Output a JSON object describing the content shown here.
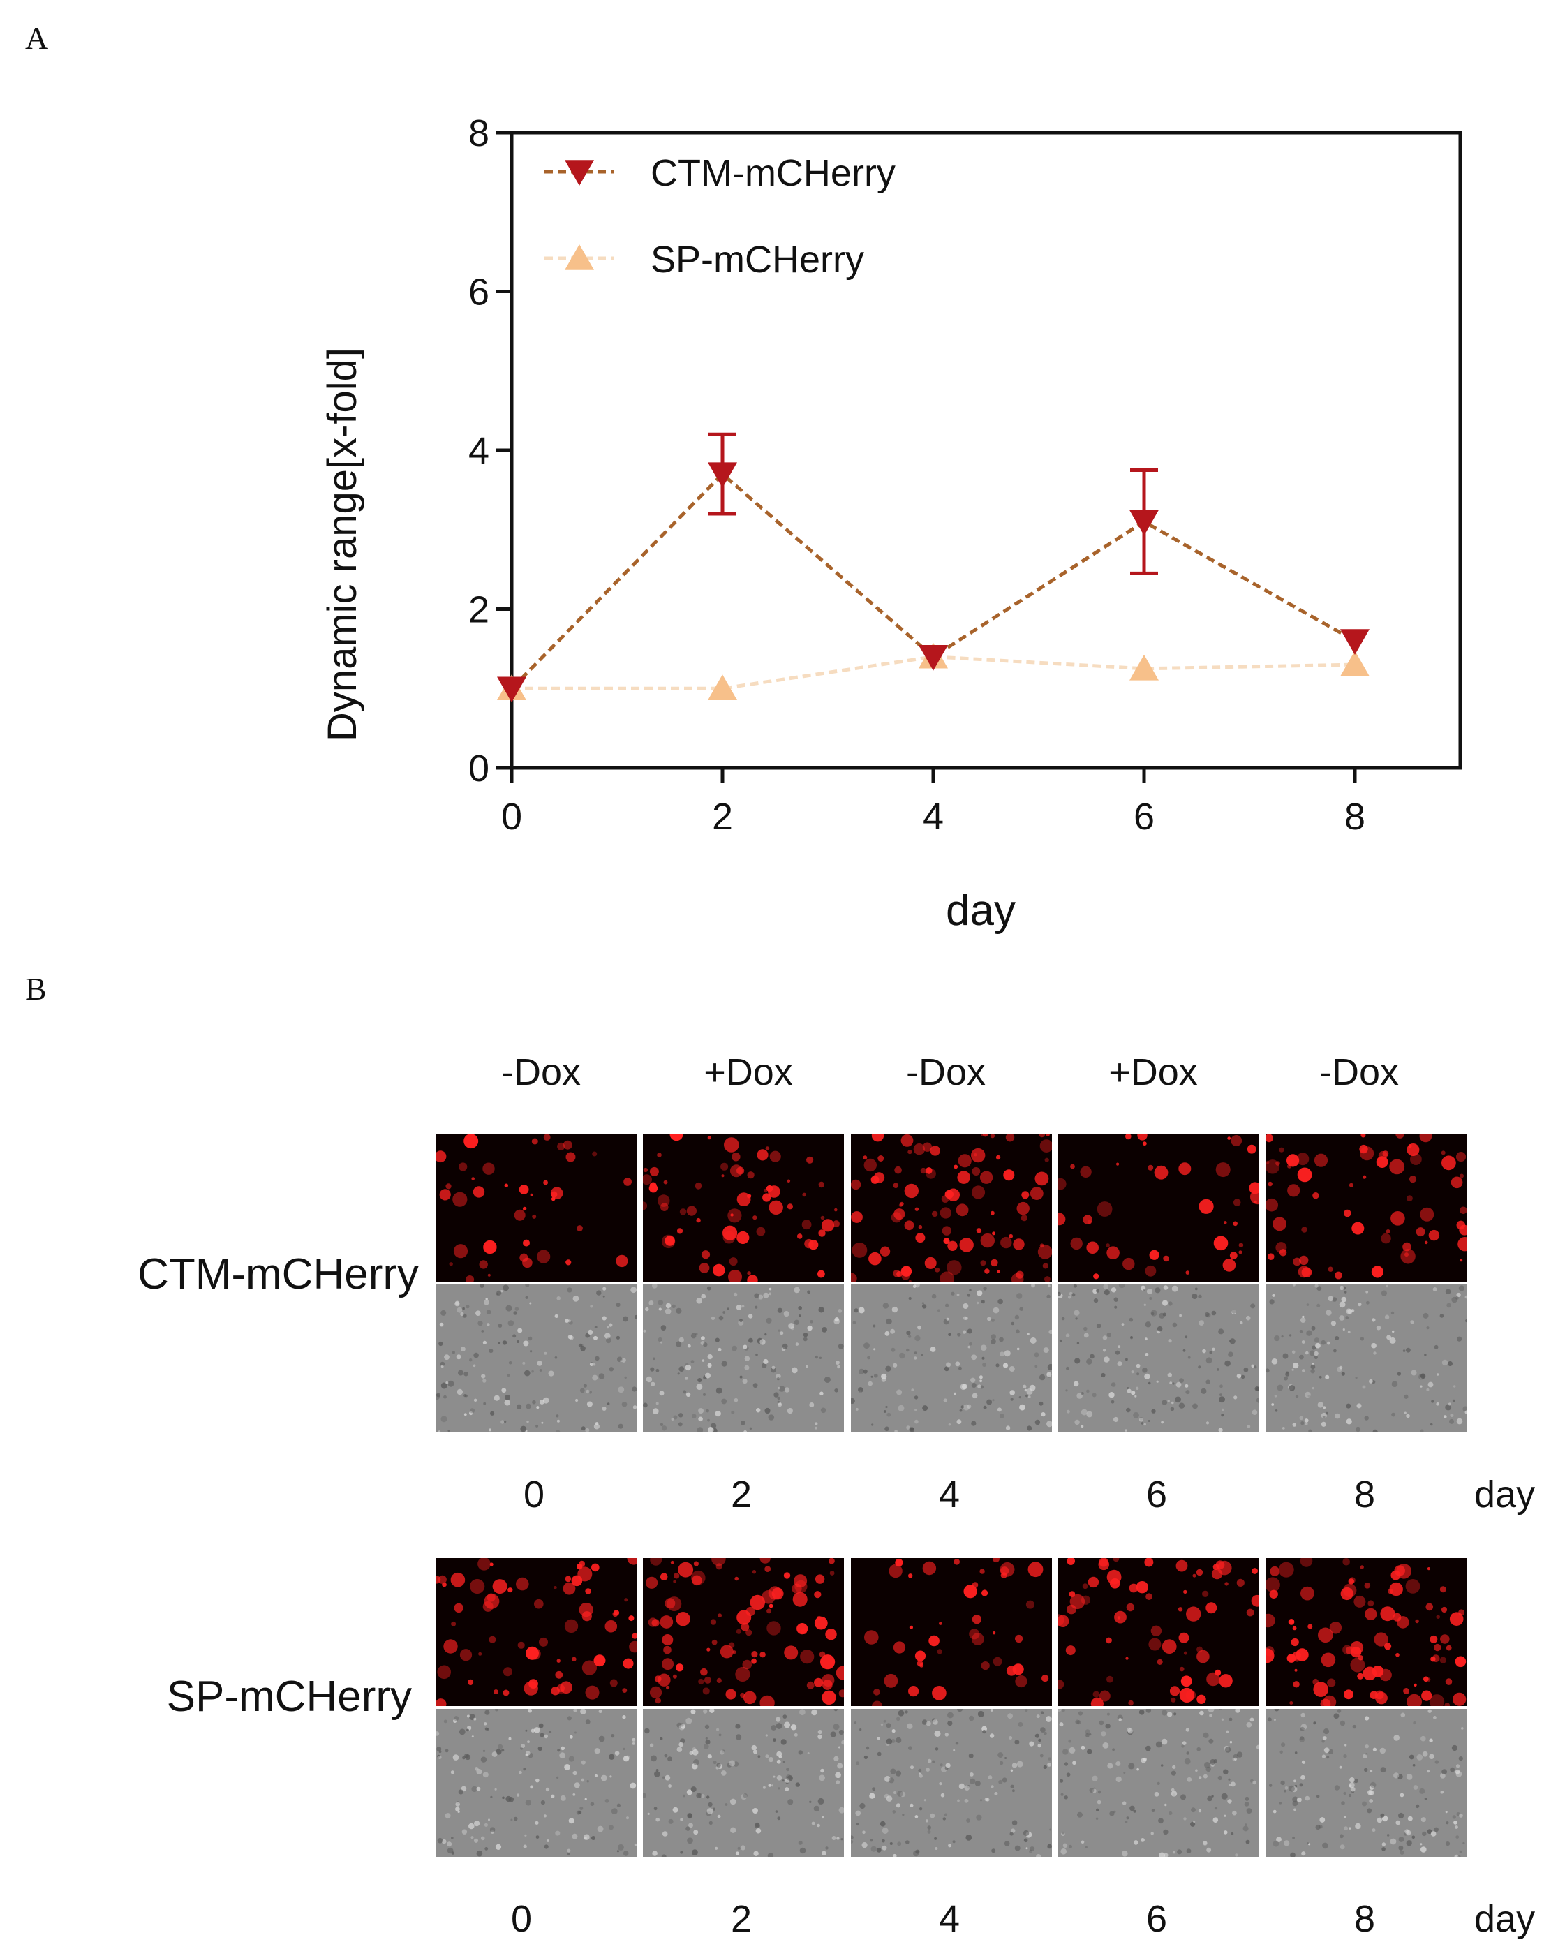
{
  "panel_a": {
    "label": "A"
  },
  "panel_b": {
    "label": "B"
  },
  "chart_data": {
    "type": "line",
    "title": "",
    "xlabel": "day",
    "ylabel": "Dynamic  range[x-fold]",
    "x": [
      0,
      2,
      4,
      6,
      8
    ],
    "xlim": [
      0,
      9
    ],
    "ylim": [
      0,
      8
    ],
    "xticks": [
      0,
      2,
      4,
      6,
      8
    ],
    "yticks": [
      0,
      2,
      4,
      6,
      8
    ],
    "legend_position": "top-left",
    "series": [
      {
        "name": "CTM-mCHerry",
        "values": [
          1.0,
          3.7,
          1.4,
          3.1,
          1.6
        ],
        "errors": [
          0.0,
          0.5,
          0.05,
          0.65,
          0.05
        ],
        "color": "#b5161c",
        "line_color": "#a8632b",
        "marker": "triangle-down"
      },
      {
        "name": "SP-mCHerry",
        "values": [
          1.0,
          1.0,
          1.4,
          1.25,
          1.3
        ],
        "errors": [
          0.0,
          0.0,
          0.0,
          0.0,
          0.0
        ],
        "color": "#f7c08a",
        "line_color": "#f6dcc0",
        "marker": "triangle-up"
      }
    ]
  },
  "images": {
    "conditions": [
      "-Dox",
      "+Dox",
      "-Dox",
      "+Dox",
      "-Dox"
    ],
    "rows": [
      {
        "label": "CTM-mCHerry",
        "days": [
          "0",
          "2",
          "4",
          "6",
          "8"
        ],
        "day_unit": "day"
      },
      {
        "label": "SP-mCHerry",
        "days": [
          "0",
          "2",
          "4",
          "6",
          "8"
        ],
        "day_unit": "day"
      }
    ]
  },
  "colors": {
    "fluorescence": "#ff2020",
    "background_dark": "#0b0000",
    "brightfield": "#8d8d8d"
  }
}
